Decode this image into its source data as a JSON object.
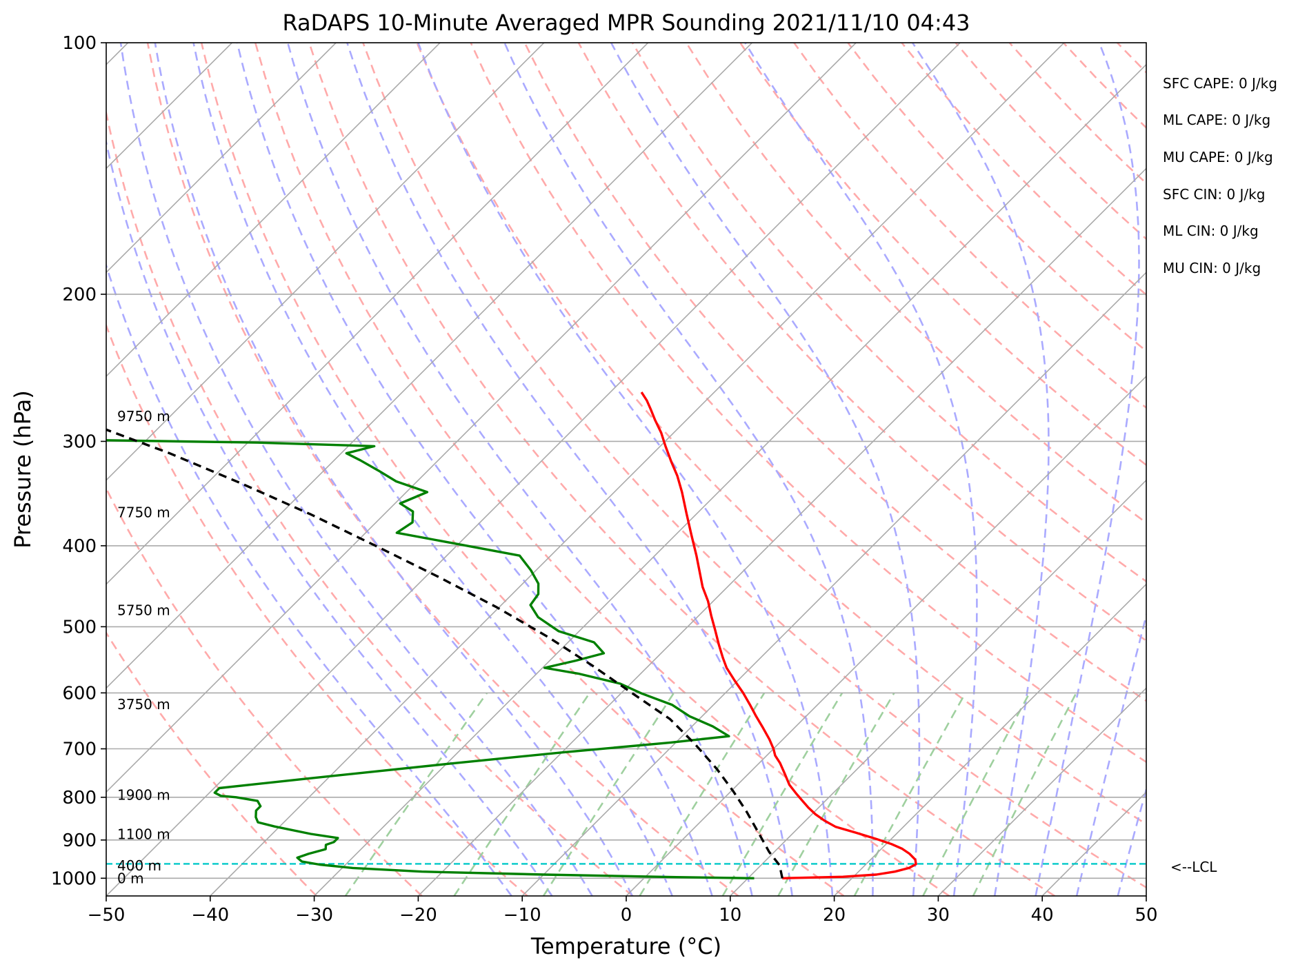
{
  "chart_data": {
    "type": "line",
    "title": "RaDAPS 10-Minute Averaged MPR Sounding 2021/11/10 04:43",
    "xlabel": "Temperature (°C)",
    "ylabel": "Pressure (hPa)",
    "xlim": [
      -50,
      50
    ],
    "ylim": [
      1050,
      100
    ],
    "y_scale": "log",
    "skew_t": true,
    "x_ticks": [
      -50,
      -40,
      -30,
      -20,
      -10,
      0,
      10,
      20,
      30,
      40,
      50
    ],
    "x_tick_labels": [
      "−50",
      "−40",
      "−30",
      "−20",
      "−10",
      "0",
      "10",
      "20",
      "30",
      "40",
      "50"
    ],
    "y_ticks": [
      1000,
      900,
      800,
      700,
      600,
      500,
      400,
      300,
      200,
      100
    ],
    "y_tick_labels": [
      "1000",
      "900",
      "800",
      "700",
      "600",
      "500",
      "400",
      "300",
      "200",
      "100"
    ],
    "grid": true,
    "series": [
      {
        "role": "temperature",
        "color": "#ff0000",
        "points": [
          [
            13.3,
            1000
          ],
          [
            19,
            996
          ],
          [
            22,
            990
          ],
          [
            23.5,
            982
          ],
          [
            24.5,
            972
          ],
          [
            24.8,
            962
          ],
          [
            24.3,
            950
          ],
          [
            23.2,
            935
          ],
          [
            22,
            922
          ],
          [
            20.5,
            910
          ],
          [
            18.5,
            897
          ],
          [
            16,
            882
          ],
          [
            13.5,
            868
          ],
          [
            11.8,
            853
          ],
          [
            10.3,
            838
          ],
          [
            9,
            823
          ],
          [
            7.8,
            808
          ],
          [
            6.5,
            792
          ],
          [
            5,
            773
          ],
          [
            3.5,
            750
          ],
          [
            2,
            728
          ],
          [
            0.8,
            713
          ],
          [
            0,
            700
          ],
          [
            -1.3,
            682
          ],
          [
            -3,
            661
          ],
          [
            -4.8,
            640
          ],
          [
            -6.5,
            620
          ],
          [
            -8.3,
            600
          ],
          [
            -10.3,
            580
          ],
          [
            -12.3,
            560
          ],
          [
            -13.6,
            545
          ],
          [
            -15.3,
            525
          ],
          [
            -17,
            505
          ],
          [
            -18.8,
            485
          ],
          [
            -20.5,
            466
          ],
          [
            -22.4,
            448
          ],
          [
            -24.3,
            428
          ],
          [
            -26,
            411
          ],
          [
            -28.5,
            388
          ],
          [
            -31,
            366
          ],
          [
            -33.5,
            345
          ],
          [
            -35.5,
            330
          ],
          [
            -37.5,
            317
          ],
          [
            -39.5,
            304
          ],
          [
            -41.2,
            293
          ],
          [
            -43,
            283
          ],
          [
            -44.4,
            275
          ],
          [
            -45.7,
            268
          ],
          [
            -47,
            262
          ]
        ]
      },
      {
        "role": "dewpoint",
        "color": "#008000",
        "points": [
          [
            10.6,
            1000
          ],
          [
            3,
            997
          ],
          [
            -10,
            990
          ],
          [
            -22,
            982
          ],
          [
            -29,
            972
          ],
          [
            -32.5,
            963
          ],
          [
            -34.5,
            955
          ],
          [
            -35.3,
            945
          ],
          [
            -34.6,
            935
          ],
          [
            -33.4,
            923
          ],
          [
            -33.8,
            912
          ],
          [
            -33.3,
            905
          ],
          [
            -33.3,
            895
          ],
          [
            -36.3,
            885
          ],
          [
            -40.5,
            867
          ],
          [
            -42.5,
            857
          ],
          [
            -43.2,
            845
          ],
          [
            -43.8,
            830
          ],
          [
            -43.8,
            820
          ],
          [
            -44.6,
            808
          ],
          [
            -47,
            800
          ],
          [
            -48.6,
            797
          ],
          [
            -49.5,
            790
          ],
          [
            -49.5,
            780
          ],
          [
            -42,
            760
          ],
          [
            -30,
            730
          ],
          [
            -20,
            707
          ],
          [
            -10.5,
            688
          ],
          [
            -5.5,
            676
          ],
          [
            -8,
            658
          ],
          [
            -11.2,
            640
          ],
          [
            -14,
            620
          ],
          [
            -18,
            601
          ],
          [
            -21,
            585
          ],
          [
            -26,
            569
          ],
          [
            -29.8,
            560
          ],
          [
            -27.5,
            549
          ],
          [
            -25.5,
            538
          ],
          [
            -27.5,
            522
          ],
          [
            -32,
            506
          ],
          [
            -35.3,
            487
          ],
          [
            -37.2,
            471
          ],
          [
            -37.5,
            457
          ],
          [
            -38.5,
            444
          ],
          [
            -40.5,
            428
          ],
          [
            -43,
            411
          ],
          [
            -49,
            400
          ],
          [
            -57,
            386
          ],
          [
            -56.5,
            375
          ],
          [
            -57.5,
            364
          ],
          [
            -59.5,
            356
          ],
          [
            -58,
            345
          ],
          [
            -62,
            335
          ],
          [
            -64.8,
            325
          ],
          [
            -67.5,
            316
          ],
          [
            -69.5,
            310
          ],
          [
            -67.5,
            304
          ],
          [
            -79,
            301
          ],
          [
            -150,
            292
          ],
          [
            -160,
            289
          ]
        ]
      },
      {
        "role": "parcel",
        "color": "#000000",
        "points": [
          [
            13.3,
            1000
          ],
          [
            11.8,
            965
          ],
          [
            9.5,
            930
          ],
          [
            6.5,
            880
          ],
          [
            3.5,
            833
          ],
          [
            0.3,
            788
          ],
          [
            -3.5,
            740
          ],
          [
            -8,
            691
          ],
          [
            -12.8,
            645
          ],
          [
            -19,
            600
          ],
          [
            -25.5,
            556
          ],
          [
            -32.5,
            514
          ],
          [
            -40.2,
            474
          ],
          [
            -48.7,
            436
          ],
          [
            -57.8,
            400
          ],
          [
            -67,
            367
          ],
          [
            -77,
            336
          ],
          [
            -86.5,
            310
          ],
          [
            -95.5,
            289
          ],
          [
            -103.5,
            270
          ]
        ]
      }
    ],
    "lcl_pressure": 961,
    "height_labels": [
      {
        "text": "9750 m",
        "p": 280
      },
      {
        "text": "7750 m",
        "p": 365
      },
      {
        "text": "5750 m",
        "p": 478
      },
      {
        "text": "3750 m",
        "p": 619
      },
      {
        "text": "1900 m",
        "p": 795
      },
      {
        "text": "1100 m",
        "p": 886
      },
      {
        "text": "400 m",
        "p": 966
      },
      {
        "text": "0 m",
        "p": 1000
      }
    ],
    "lcl_label": "<--LCL",
    "indices": [
      {
        "label": "SFC CAPE: 0 J/kg"
      },
      {
        "label": "ML CAPE: 0 J/kg"
      },
      {
        "label": "MU CAPE: 0 J/kg"
      },
      {
        "label": "SFC CIN: 0 J/kg"
      },
      {
        "label": "ML CIN: 0 J/kg"
      },
      {
        "label": "MU CIN: 0 J/kg"
      }
    ],
    "colors": {
      "isotherm": "#aaaaaa",
      "isobar": "#aaaaaa",
      "dry_adiabat": "#ffaaaa",
      "moist_adiabat": "#aaaaff",
      "mixing_ratio": "#9fd09f",
      "lcl_line": "#00c8c8"
    }
  }
}
